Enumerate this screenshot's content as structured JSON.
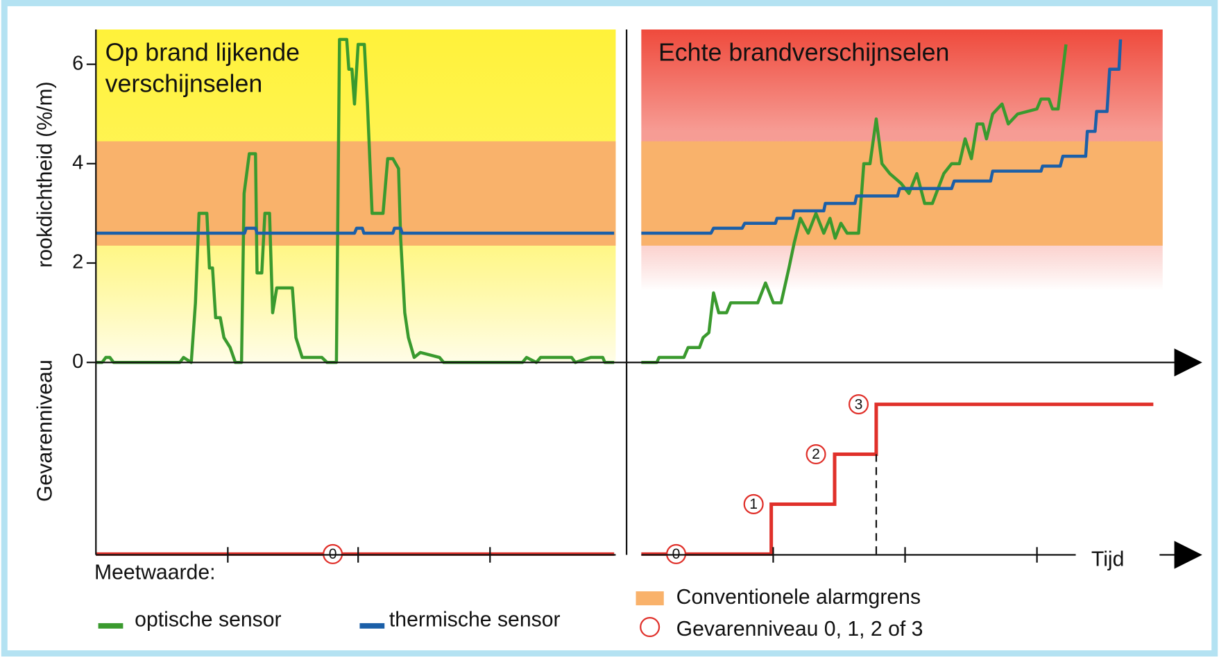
{
  "chart_data": {
    "type": "line",
    "ylabel": "rookdichtheid (%/m)",
    "y2label": "Gevarenniveau",
    "xlabel": "Tijd",
    "ylim": [
      0,
      6.7
    ],
    "yticks": [
      0,
      2,
      4,
      6
    ],
    "xlim": [
      0,
      100
    ],
    "y2lim": [
      0,
      3
    ],
    "alarm_band": [
      2.35,
      4.45
    ],
    "alarm_color": "#f9b26b",
    "legend_title": "Meetwaarde:",
    "legend": [
      {
        "name": "optische sensor",
        "color": "#3a9a2e"
      },
      {
        "name": "thermische sensor",
        "color": "#1b5fa8"
      }
    ],
    "alarm_label": "Conventionele alarmgrens",
    "level_label": "Gevarenniveau 0, 1, 2 of 3",
    "level_color": "#e0302a",
    "panels": [
      {
        "title": [
          "Op brand lijkende",
          "verschijnselen"
        ],
        "bg_colors": [
          "#fff23a",
          "#fffde8"
        ],
        "series": [
          {
            "color": "#3a9a2e",
            "x": [
              0,
              1.2,
              1.9,
              2.7,
              3.4,
              16.2,
              16.9,
              18.4,
              19.2,
              19.9,
              21.4,
              21.9,
              22.5,
              23.1,
              24,
              24.7,
              25.9,
              26.9,
              28.1,
              28.6,
              29.6,
              30.8,
              31.1,
              32,
              32.6,
              33.5,
              34.1,
              34.9,
              37.9,
              38.6,
              39.8,
              43.6,
              44.6,
              46.4,
              47,
              48.4,
              48.8,
              49.4,
              49.9,
              50.6,
              51.8,
              52.4,
              53.3,
              55.4,
              56.3,
              57.3,
              58.4,
              58.8,
              59.6,
              60.3,
              61.4,
              62.6,
              66.3,
              67.1,
              82.3,
              83.1,
              85,
              85.8,
              91.8,
              92.5,
              95.5,
              97.8,
              98.2,
              100
            ],
            "values": [
              0,
              0,
              0.1,
              0.1,
              0,
              0,
              0.1,
              0,
              1.2,
              3.0,
              3.0,
              1.9,
              1.9,
              0.9,
              0.9,
              0.5,
              0.3,
              0,
              0,
              3.4,
              4.2,
              4.2,
              1.8,
              1.8,
              3.0,
              3.0,
              1.0,
              1.5,
              1.5,
              0.5,
              0.1,
              0.1,
              0,
              0,
              6.5,
              6.5,
              5.9,
              5.9,
              5.2,
              6.4,
              6.4,
              5.2,
              3.0,
              3.0,
              4.1,
              4.1,
              3.9,
              2.5,
              1.0,
              0.5,
              0.1,
              0.2,
              0.1,
              0,
              0,
              0.1,
              0,
              0.1,
              0.1,
              0,
              0.1,
              0.1,
              0,
              0
            ]
          },
          {
            "color": "#1b5fa8",
            "x": [
              0,
              28.7,
              29,
              30.8,
              31.1,
              49.9,
              50.3,
              51.4,
              51.7,
              57.3,
              57.6,
              58.8,
              59.1,
              100
            ],
            "values": [
              2.6,
              2.6,
              2.7,
              2.7,
              2.6,
              2.6,
              2.7,
              2.7,
              2.6,
              2.6,
              2.7,
              2.7,
              2.6,
              2.6
            ]
          }
        ],
        "level": {
          "x": [
            0,
            100
          ],
          "values": [
            0,
            0
          ],
          "markers": [
            {
              "x": 45.7,
              "value": 0
            }
          ]
        }
      },
      {
        "title": [
          "Echte brandverschijnselen"
        ],
        "bg_colors": [
          "#ef4a3c",
          "#ffffff"
        ],
        "series": [
          {
            "color": "#3a9a2e",
            "x": [
              0,
              3,
              3.4,
              8.2,
              9,
              11.2,
              11.9,
              13,
              13.9,
              14.9,
              16.4,
              17.2,
              22.4,
              23.9,
              25.4,
              26.9,
              28.4,
              29.4,
              30.6,
              32.1,
              33.6,
              35.1,
              36.3,
              37.3,
              38.4,
              39.6,
              41.8,
              42.8,
              44,
              45.2,
              46.3,
              47.8,
              50,
              51.5,
              53,
              54.5,
              56,
              58.2,
              59.7,
              61.2,
              62.3,
              63.5,
              64.6,
              65.7,
              66.4,
              67.6,
              69.4,
              70.6,
              72.4,
              76.1,
              76.9,
              78.4,
              79.1,
              80.2,
              81.7
            ],
            "values": [
              0,
              0,
              0.1,
              0.1,
              0.3,
              0.3,
              0.5,
              0.6,
              1.4,
              1.0,
              1.0,
              1.2,
              1.2,
              1.6,
              1.2,
              1.2,
              1.9,
              2.4,
              2.9,
              2.6,
              3.0,
              2.6,
              2.9,
              2.5,
              2.8,
              2.6,
              2.6,
              4.0,
              4.0,
              4.9,
              4.0,
              3.8,
              3.6,
              3.4,
              3.8,
              3.2,
              3.2,
              3.8,
              4.0,
              4.0,
              4.5,
              4.1,
              4.8,
              4.8,
              4.5,
              5.0,
              5.2,
              4.8,
              5.0,
              5.1,
              5.3,
              5.3,
              5.1,
              5.1,
              6.4
            ]
          },
          {
            "color": "#1b5fa8",
            "x": [
              0,
              13.4,
              13.9,
              19.4,
              19.9,
              25.8,
              26.1,
              29.1,
              29.4,
              35.1,
              35.4,
              41.1,
              41.4,
              49.3,
              49.7,
              59.7,
              60.2,
              67.2,
              67.6,
              76.9,
              77.2,
              80.6,
              81.1,
              85.5,
              85.8,
              87.3,
              87.6,
              89.6,
              90.1,
              91.9,
              92.2
            ],
            "values": [
              2.6,
              2.6,
              2.7,
              2.7,
              2.8,
              2.8,
              2.9,
              2.9,
              3.05,
              3.05,
              3.2,
              3.2,
              3.35,
              3.35,
              3.5,
              3.5,
              3.65,
              3.65,
              3.85,
              3.85,
              3.95,
              3.95,
              4.15,
              4.15,
              4.65,
              4.65,
              5.05,
              5.05,
              5.9,
              5.9,
              6.5
            ]
          }
        ],
        "level": {
          "x": [
            0,
            25,
            25,
            37.2,
            37.2,
            45.2,
            45.2,
            98.5
          ],
          "values": [
            0,
            0,
            1,
            1,
            2,
            2,
            3,
            3
          ],
          "markers": [
            {
              "x": 6.7,
              "value": 0
            },
            {
              "x": 21.6,
              "value": 1
            },
            {
              "x": 33.6,
              "value": 2
            },
            {
              "x": 41.8,
              "value": 3
            }
          ]
        }
      }
    ]
  }
}
